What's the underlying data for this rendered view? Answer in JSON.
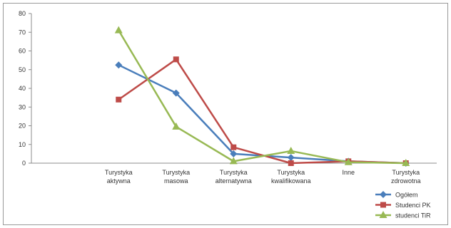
{
  "chart_data": {
    "type": "line",
    "title": "",
    "xlabel": "",
    "ylabel": "",
    "ylim": [
      0,
      80
    ],
    "ytick_step": 10,
    "grid": false,
    "legend_position": "bottom-right",
    "categories": [
      [
        "Turystyka",
        "aktywna"
      ],
      [
        "Turystyka",
        "masowa"
      ],
      [
        "Turystyka",
        "alternatywna"
      ],
      [
        "Turystyka",
        "kwalifikowana"
      ],
      [
        "Inne"
      ],
      [
        "Turystyka",
        "zdrowotna"
      ]
    ],
    "series": [
      {
        "name": "Ogółem",
        "color": "#4a7ebb",
        "marker": "diamond",
        "values": [
          52.5,
          37.5,
          5,
          3,
          1,
          0
        ]
      },
      {
        "name": "Studenci PK",
        "color": "#be4b48",
        "marker": "square",
        "values": [
          34,
          55.5,
          8.5,
          0,
          1,
          0
        ]
      },
      {
        "name": "studenci TiR",
        "color": "#98b954",
        "marker": "triangle",
        "values": [
          71,
          19.5,
          1,
          6.5,
          0.5,
          0
        ]
      }
    ]
  }
}
